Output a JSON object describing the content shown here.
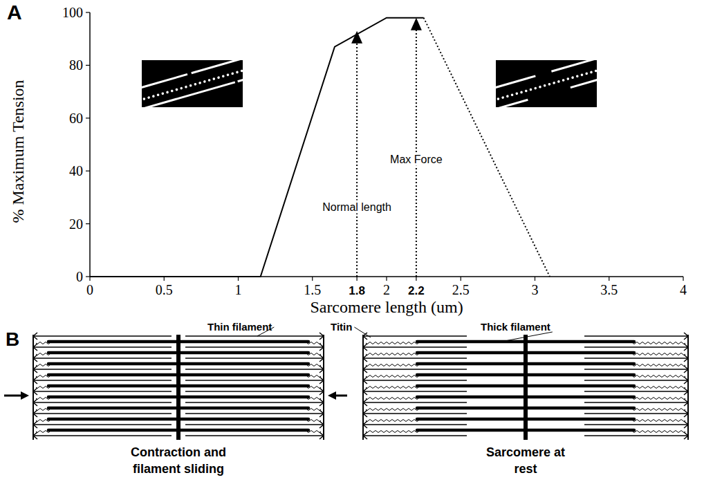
{
  "panel_labels": [
    "A",
    "B"
  ],
  "chart_data": {
    "type": "line",
    "xlabel": "Sarcomere length (um)",
    "ylabel": "% Maximum Tension",
    "xlim": [
      0,
      4
    ],
    "ylim": [
      0,
      100
    ],
    "xticks": [
      0,
      0.5,
      1,
      1.5,
      1.8,
      2,
      2.2,
      2.5,
      3,
      3.5,
      4
    ],
    "yticks": [
      0,
      20,
      40,
      60,
      80,
      100
    ],
    "grid": false,
    "series": [
      {
        "x": [
          0,
          1.15,
          1.65,
          2.0,
          2.25
        ],
        "values": [
          0,
          0,
          87,
          98,
          98
        ],
        "line_style": "solid",
        "color": "#000000"
      },
      {
        "x": [
          2.25,
          3.1
        ],
        "values": [
          98,
          0
        ],
        "line_style": "dotted",
        "color": "#000000"
      }
    ],
    "annotations": [
      {
        "text": "Normal length",
        "x": 1.8,
        "y": 93
      },
      {
        "text": "Max Force",
        "x": 2.2,
        "y": 98
      }
    ]
  },
  "diagram": {
    "labels": [
      "Thin filament",
      "Titin",
      "Thick filament"
    ],
    "captions": [
      "Contraction and filament sliding",
      "Sarcomere at rest"
    ]
  }
}
